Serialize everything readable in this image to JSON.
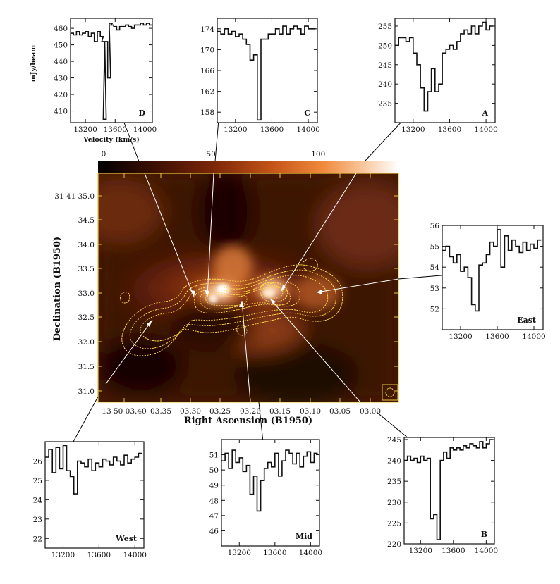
{
  "figure": {
    "ra_axis_label": "Right Ascension (B1950)",
    "dec_axis_label": "Declination (B1950)",
    "colorbar_ticks": [
      "0",
      "50",
      "100"
    ],
    "ra_ticks": [
      "13 50 03.40",
      "03.35",
      "03.30",
      "03.25",
      "03.20",
      "03.15",
      "03.10",
      "03.05",
      "03.00"
    ],
    "dec_ticks": [
      "31 41 35.0",
      "34.5",
      "34.0",
      "33.5",
      "33.0",
      "32.5",
      "32.0",
      "31.5",
      "31.0"
    ],
    "colors": {
      "contour": "#ffd84a",
      "frame": "#e8c93a",
      "pointer": "#ffffff",
      "spectrum": "#111111"
    }
  },
  "chart_data": [
    {
      "type": "line",
      "label": "D",
      "xlabel": "Velocity (km/s)",
      "ylabel": "mJy/beam",
      "xlim": [
        13000,
        14100
      ],
      "ylim": [
        403,
        466
      ],
      "xticks": [
        13200,
        13600,
        14000
      ],
      "yticks": [
        410,
        420,
        430,
        440,
        450,
        460
      ],
      "x": [
        13020,
        13060,
        13100,
        13140,
        13180,
        13220,
        13260,
        13300,
        13340,
        13380,
        13420,
        13440,
        13460,
        13480,
        13520,
        13540,
        13560,
        13600,
        13640,
        13680,
        13720,
        13760,
        13800,
        13840,
        13880,
        13920,
        13960,
        14000,
        14040,
        14080
      ],
      "y": [
        457,
        456,
        458,
        456,
        457,
        458,
        455,
        457,
        452,
        458,
        455,
        452,
        405,
        452,
        430,
        463,
        462,
        461,
        459,
        461,
        461,
        462,
        461,
        460,
        462,
        462,
        463,
        462,
        463,
        462
      ]
    },
    {
      "type": "line",
      "label": "C",
      "xlim": [
        13000,
        14100
      ],
      "ylim": [
        156,
        176
      ],
      "xticks": [
        13200,
        13600,
        14000
      ],
      "yticks": [
        158,
        162,
        166,
        170,
        174
      ],
      "x": [
        13020,
        13060,
        13100,
        13140,
        13180,
        13220,
        13260,
        13300,
        13340,
        13380,
        13420,
        13460,
        13500,
        13540,
        13580,
        13620,
        13660,
        13700,
        13740,
        13780,
        13820,
        13860,
        13900,
        13940,
        13980,
        14020,
        14060
      ],
      "y": [
        173.5,
        173,
        174,
        173,
        173.5,
        172.5,
        173,
        172,
        171,
        168,
        169,
        156.5,
        172,
        172,
        173,
        173,
        174,
        173,
        174.5,
        173,
        174,
        174.5,
        174,
        173,
        174.5,
        174,
        174
      ]
    },
    {
      "type": "line",
      "label": "A",
      "xlim": [
        13000,
        14100
      ],
      "ylim": [
        230,
        257
      ],
      "xticks": [
        13200,
        13600,
        14000
      ],
      "yticks": [
        235,
        240,
        245,
        250,
        255
      ],
      "x": [
        13020,
        13060,
        13100,
        13140,
        13180,
        13220,
        13260,
        13300,
        13340,
        13380,
        13420,
        13460,
        13500,
        13540,
        13580,
        13620,
        13660,
        13700,
        13740,
        13780,
        13820,
        13860,
        13900,
        13940,
        13980,
        14020,
        14060
      ],
      "y": [
        250,
        252,
        252,
        251,
        252,
        248,
        245,
        239,
        233,
        238,
        244,
        238,
        240,
        248,
        249,
        250,
        249,
        251,
        253,
        254,
        253,
        255,
        253,
        255,
        256,
        254,
        255
      ]
    },
    {
      "type": "line",
      "label": "East",
      "xlim": [
        13000,
        14100
      ],
      "ylim": [
        51,
        56
      ],
      "xticks": [
        13200,
        13600,
        14000
      ],
      "yticks": [
        52,
        53,
        54,
        55,
        56
      ],
      "x": [
        13020,
        13060,
        13100,
        13140,
        13180,
        13220,
        13260,
        13300,
        13340,
        13380,
        13420,
        13460,
        13500,
        13540,
        13580,
        13620,
        13660,
        13700,
        13740,
        13780,
        13820,
        13860,
        13900,
        13940,
        13980,
        14020,
        14060
      ],
      "y": [
        54.8,
        55,
        54.5,
        54.2,
        54.6,
        53.8,
        54,
        53.5,
        52.2,
        51.9,
        54.1,
        54.2,
        54.6,
        55.2,
        55,
        55.8,
        54,
        55.5,
        54.8,
        55.3,
        55,
        54.7,
        55.2,
        54.8,
        55.1,
        54.9,
        55.3
      ]
    },
    {
      "type": "line",
      "label": "West",
      "xlim": [
        13000,
        14100
      ],
      "ylim": [
        21.5,
        27
      ],
      "xticks": [
        13200,
        13600,
        14000
      ],
      "yticks": [
        22,
        23,
        24,
        25,
        26
      ],
      "x": [
        13020,
        13060,
        13100,
        13140,
        13180,
        13220,
        13260,
        13300,
        13340,
        13380,
        13420,
        13460,
        13500,
        13540,
        13580,
        13620,
        13660,
        13700,
        13740,
        13780,
        13820,
        13860,
        13900,
        13940,
        13980,
        14020,
        14060
      ],
      "y": [
        26.2,
        26.6,
        25.4,
        26.7,
        25.6,
        26.8,
        25.5,
        25.2,
        24.3,
        26.0,
        25.9,
        25.7,
        26.1,
        25.5,
        25.9,
        25.7,
        26.1,
        26.0,
        25.8,
        26.2,
        26.0,
        25.8,
        26.3,
        25.9,
        26.1,
        26.2,
        26.4
      ]
    },
    {
      "type": "line",
      "label": "Mid",
      "xlim": [
        13000,
        14100
      ],
      "ylim": [
        45,
        52
      ],
      "xticks": [
        13200,
        13600,
        14000
      ],
      "yticks": [
        46,
        47,
        48,
        49,
        50,
        51
      ],
      "x": [
        13020,
        13060,
        13100,
        13140,
        13180,
        13220,
        13260,
        13300,
        13340,
        13380,
        13420,
        13460,
        13500,
        13540,
        13580,
        13620,
        13660,
        13700,
        13740,
        13780,
        13820,
        13860,
        13900,
        13940,
        13980,
        14020,
        14060
      ],
      "y": [
        50.6,
        51.1,
        50.1,
        51.3,
        50.5,
        50.8,
        49.9,
        50.3,
        48.4,
        49.6,
        47.3,
        49.3,
        50.1,
        50.5,
        50.2,
        51.1,
        49.6,
        50.6,
        51.3,
        51.1,
        50.4,
        51.1,
        50.2,
        50.9,
        51.2,
        50.5,
        51.1
      ]
    },
    {
      "type": "line",
      "label": "B",
      "xlim": [
        13000,
        14100
      ],
      "ylim": [
        220,
        245.5
      ],
      "xticks": [
        13200,
        13600,
        14000
      ],
      "yticks": [
        220,
        225,
        230,
        235,
        240,
        245
      ],
      "x": [
        13020,
        13060,
        13100,
        13140,
        13180,
        13220,
        13260,
        13300,
        13340,
        13380,
        13420,
        13460,
        13500,
        13540,
        13580,
        13620,
        13660,
        13700,
        13740,
        13780,
        13820,
        13860,
        13900,
        13940,
        13980,
        14020,
        14060
      ],
      "y": [
        240,
        241,
        240,
        240.5,
        239.5,
        241,
        240,
        240.5,
        226,
        227,
        221,
        240,
        242,
        240.5,
        243,
        242.5,
        243,
        242.5,
        243.5,
        243,
        244,
        243.5,
        243,
        244.5,
        243,
        244,
        245
      ]
    }
  ]
}
